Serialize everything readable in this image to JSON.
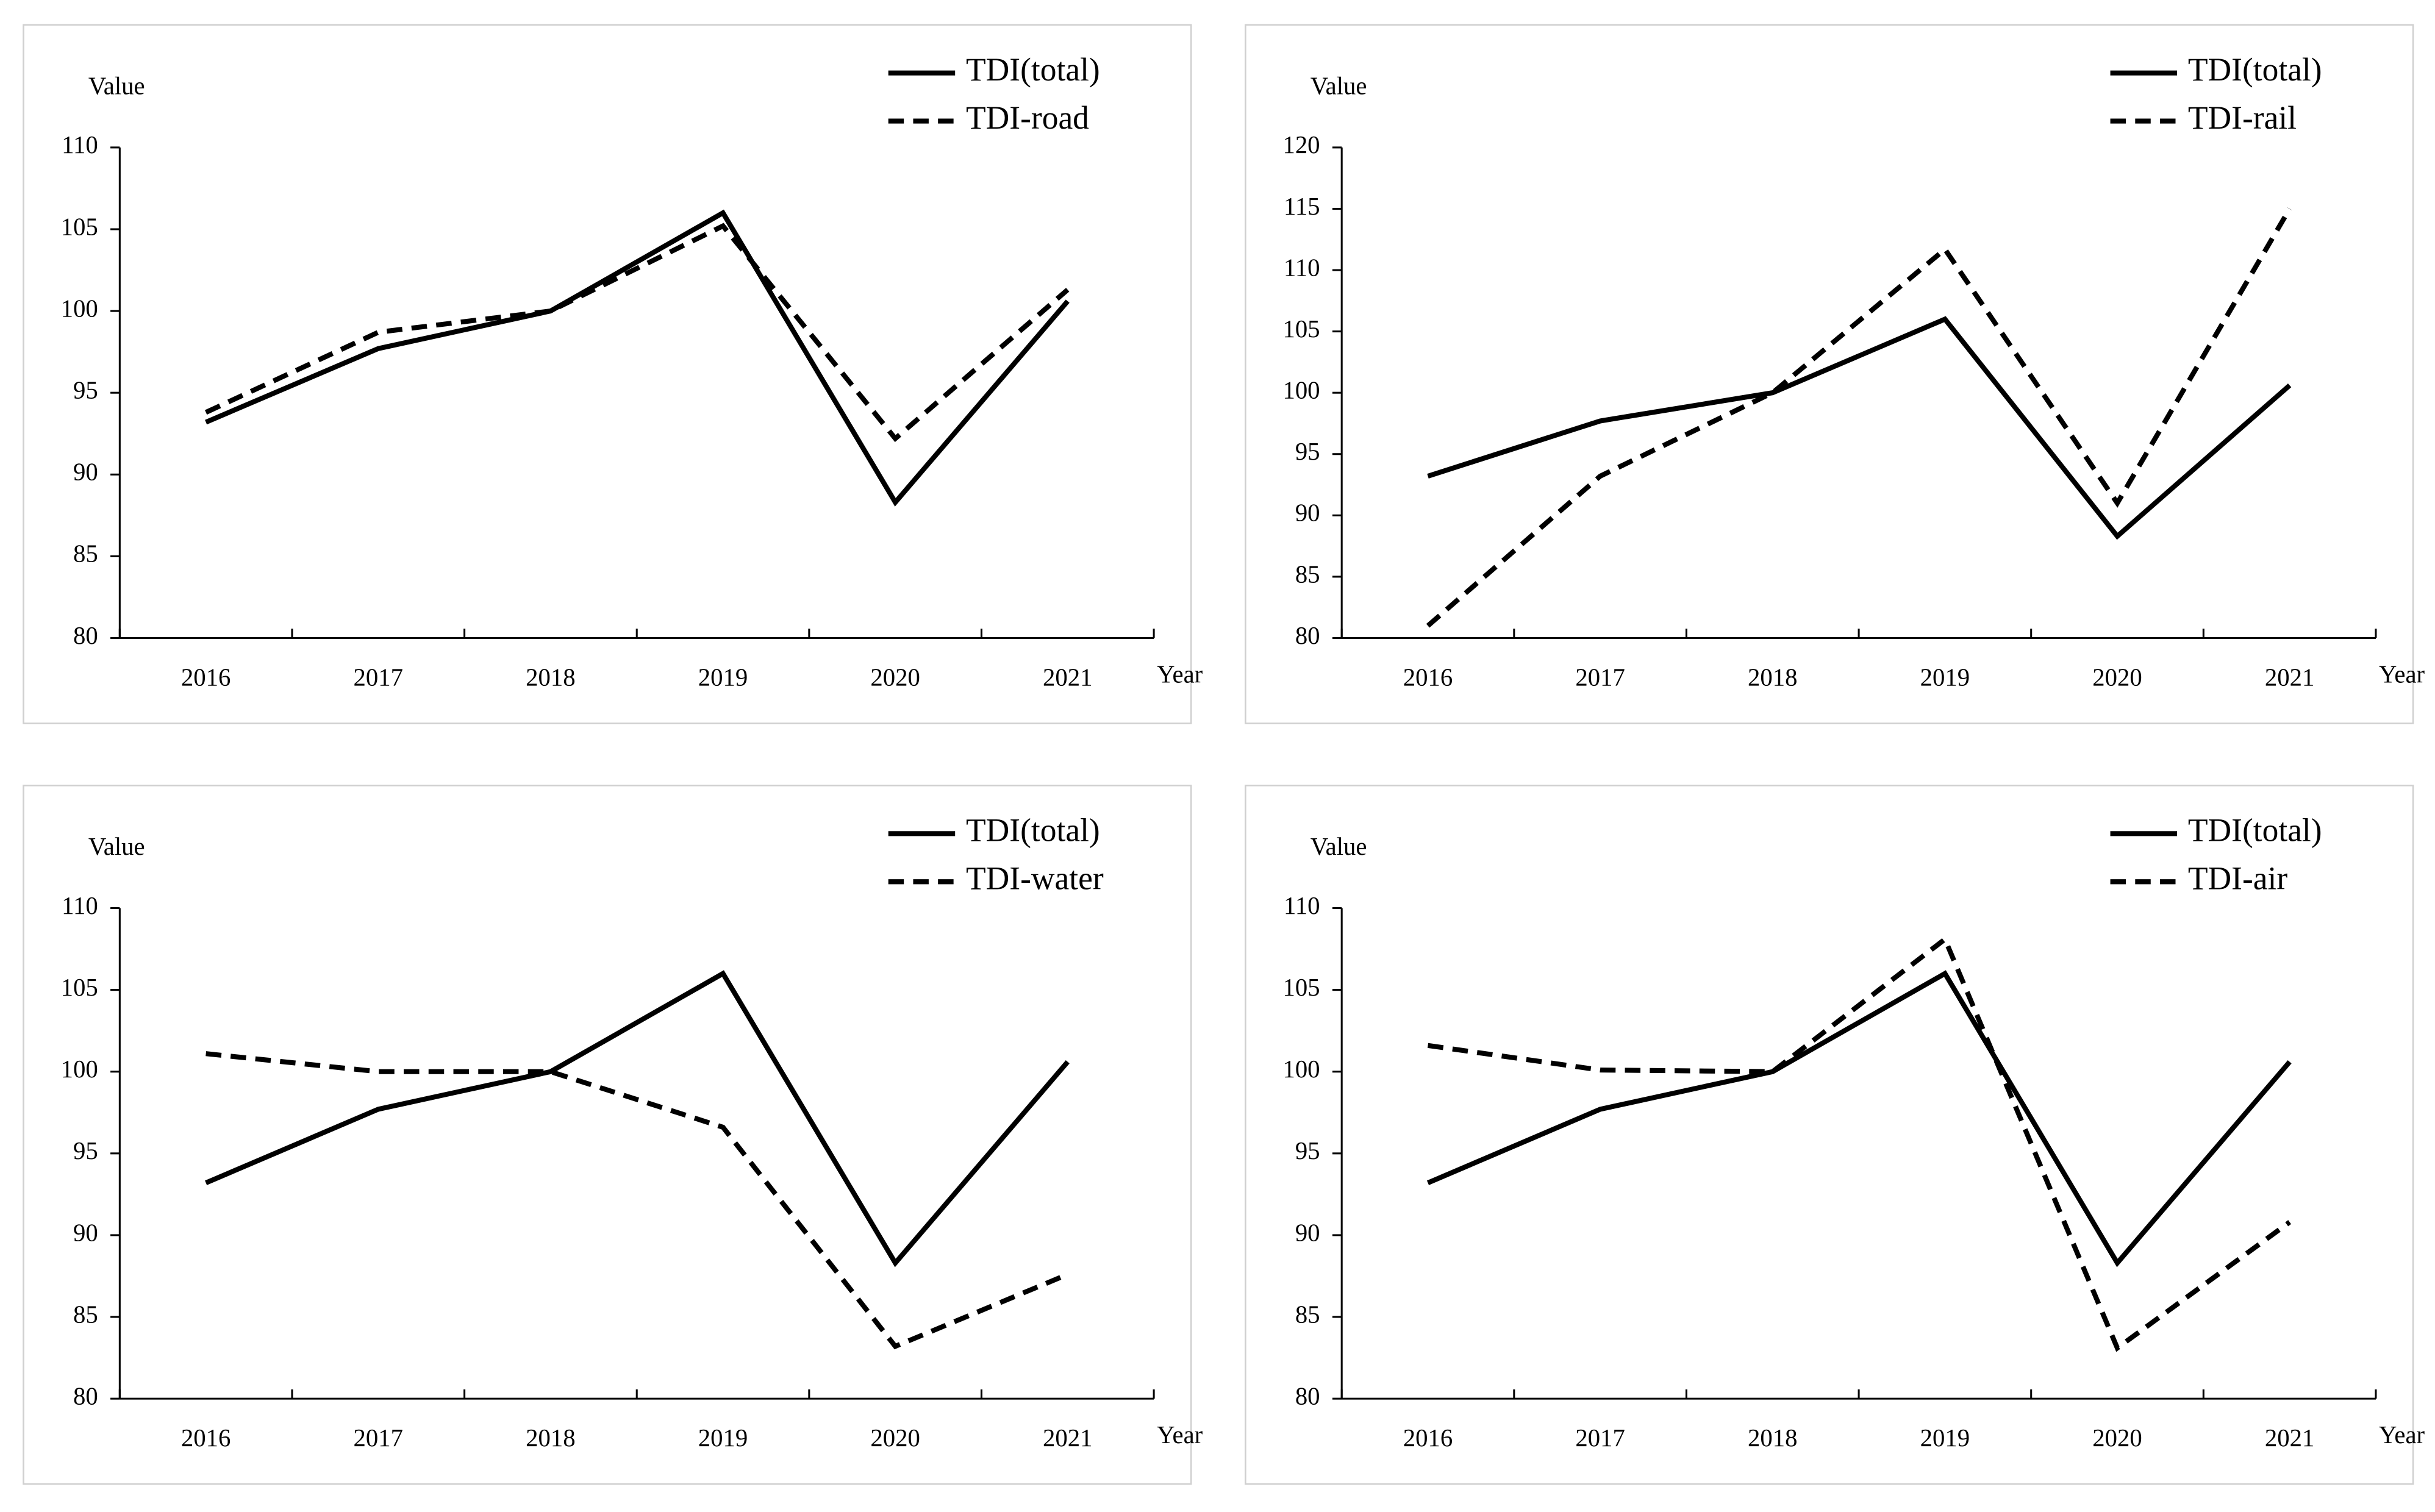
{
  "chart_data": [
    {
      "type": "line",
      "y_label": "Value",
      "x_label": "Year",
      "categories": [
        "2016",
        "2017",
        "2018",
        "2019",
        "2020",
        "2021"
      ],
      "ylim": [
        80,
        110
      ],
      "yticks": [
        80,
        85,
        90,
        95,
        100,
        105,
        110
      ],
      "series": [
        {
          "name": "TDI(total)",
          "color": "#000000",
          "line_style": "solid",
          "values": [
            93.2,
            97.7,
            100,
            106,
            88.3,
            100.6
          ]
        },
        {
          "name": "TDI-road",
          "color": "#000000",
          "line_style": "dashed",
          "values": [
            93.8,
            98.7,
            100,
            105.2,
            92.2,
            101.3
          ]
        }
      ]
    },
    {
      "type": "line",
      "y_label": "Value",
      "x_label": "Year",
      "categories": [
        "2016",
        "2017",
        "2018",
        "2019",
        "2020",
        "2021"
      ],
      "ylim": [
        80,
        120
      ],
      "yticks": [
        80,
        85,
        90,
        95,
        100,
        105,
        110,
        115,
        120
      ],
      "series": [
        {
          "name": "TDI(total)",
          "color": "#000000",
          "line_style": "solid",
          "values": [
            93.2,
            97.7,
            100,
            106,
            88.3,
            100.6
          ]
        },
        {
          "name": "TDI-rail",
          "color": "#000000",
          "line_style": "dashed",
          "values": [
            81,
            93.2,
            100,
            111.7,
            91,
            115
          ]
        }
      ]
    },
    {
      "type": "line",
      "y_label": "Value",
      "x_label": "Year",
      "categories": [
        "2016",
        "2017",
        "2018",
        "2019",
        "2020",
        "2021"
      ],
      "ylim": [
        80,
        110
      ],
      "yticks": [
        80,
        85,
        90,
        95,
        100,
        105,
        110
      ],
      "series": [
        {
          "name": "TDI(total)",
          "color": "#000000",
          "line_style": "solid",
          "values": [
            93.2,
            97.7,
            100,
            106,
            88.3,
            100.6
          ]
        },
        {
          "name": "TDI-water",
          "color": "#000000",
          "line_style": "dashed",
          "values": [
            101.1,
            100,
            100,
            96.6,
            83.2,
            87.6
          ]
        }
      ]
    },
    {
      "type": "line",
      "y_label": "Value",
      "x_label": "Year",
      "categories": [
        "2016",
        "2017",
        "2018",
        "2019",
        "2020",
        "2021"
      ],
      "ylim": [
        80,
        110
      ],
      "yticks": [
        80,
        85,
        90,
        95,
        100,
        105,
        110
      ],
      "series": [
        {
          "name": "TDI(total)",
          "color": "#000000",
          "line_style": "solid",
          "values": [
            93.2,
            97.7,
            100,
            106,
            88.3,
            100.6
          ]
        },
        {
          "name": "TDI-air",
          "color": "#000000",
          "line_style": "dashed",
          "values": [
            101.6,
            100.1,
            100,
            108.1,
            83.1,
            90.8
          ]
        }
      ]
    }
  ]
}
